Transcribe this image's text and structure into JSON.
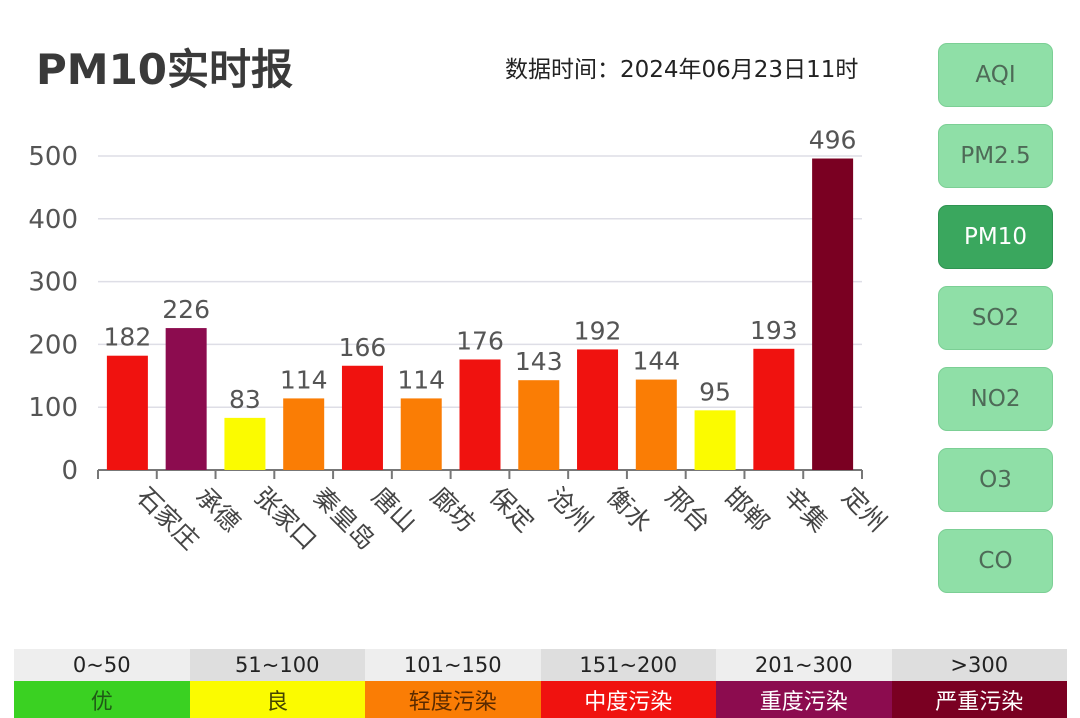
{
  "header": {
    "title": "PM10实时报",
    "time_label": "数据时间：2024年06月23日11时"
  },
  "chart_data": {
    "type": "bar",
    "title": "PM10实时报",
    "categories": [
      "石家庄",
      "承德",
      "张家口",
      "秦皇岛",
      "唐山",
      "廊坊",
      "保定",
      "沧州",
      "衡水",
      "邢台",
      "邯郸",
      "辛集",
      "定州"
    ],
    "values": [
      182,
      226,
      83,
      114,
      166,
      114,
      176,
      143,
      192,
      144,
      95,
      193,
      496
    ],
    "colors": [
      "#f0120f",
      "#8c0c4f",
      "#fbfb00",
      "#fa7d05",
      "#f0120f",
      "#fa7d05",
      "#f0120f",
      "#fa7d05",
      "#f0120f",
      "#fa7d05",
      "#fbfb00",
      "#f0120f",
      "#7a0022"
    ],
    "ylim": [
      0,
      500
    ],
    "yticks": [
      0,
      100,
      200,
      300,
      400,
      500
    ],
    "grid": true,
    "xlabel": "",
    "ylabel": ""
  },
  "sidebar": {
    "items": [
      {
        "label": "AQI",
        "active": false
      },
      {
        "label": "PM2.5",
        "active": false
      },
      {
        "label": "PM10",
        "active": true
      },
      {
        "label": "SO2",
        "active": false
      },
      {
        "label": "NO2",
        "active": false
      },
      {
        "label": "O3",
        "active": false
      },
      {
        "label": "CO",
        "active": false
      }
    ]
  },
  "legend": {
    "items": [
      {
        "range": "0~50",
        "label": "优",
        "color": "#3ad122",
        "range_bg": "#eeeeee",
        "text_color": "#1f5a16"
      },
      {
        "range": "51~100",
        "label": "良",
        "color": "#fbfb00",
        "range_bg": "#dedede",
        "text_color": "#444400"
      },
      {
        "range": "101~150",
        "label": "轻度污染",
        "color": "#fa7d05",
        "range_bg": "#eeeeee",
        "text_color": "#5a2a00"
      },
      {
        "range": "151~200",
        "label": "中度污染",
        "color": "#f0120f",
        "range_bg": "#dedede",
        "text_color": "#ffffff"
      },
      {
        "range": "201~300",
        "label": "重度污染",
        "color": "#8c0c4f",
        "range_bg": "#eeeeee",
        "text_color": "#ffffff"
      },
      {
        "range": ">300",
        "label": "严重污染",
        "color": "#7a0022",
        "range_bg": "#dedede",
        "text_color": "#ffffff"
      }
    ]
  }
}
